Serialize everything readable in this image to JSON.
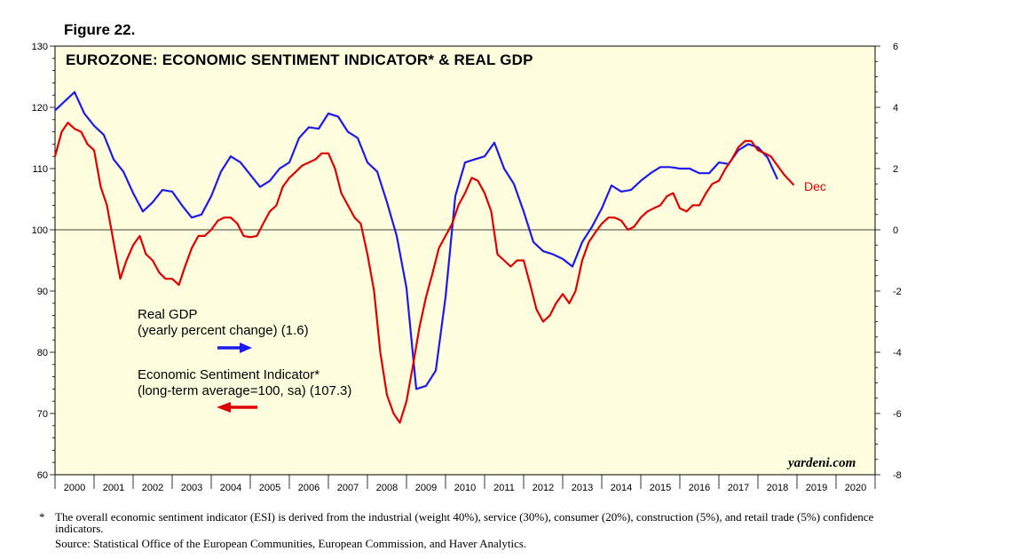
{
  "figure_label": "Figure 22.",
  "watermark": "yardeni.com",
  "footnote": {
    "marker": "*",
    "text": "The overall economic sentiment indicator (ESI) is derived from the industrial (weight 40%), service (30%), consumer (20%), construction (5%), and retail trade (5%) confidence indicators.",
    "source": "Source: Statistical Office of the European Communities, European Commission, and Haver Analytics."
  },
  "colors": {
    "esi": "#e00000",
    "gdp": "#1a1aee",
    "plot_bg": "#ffffe0"
  },
  "chart_data": {
    "type": "line",
    "title": "EUROZONE: ECONOMIC SENTIMENT INDICATOR* & REAL GDP",
    "x_range": [
      2000,
      2021
    ],
    "x_tick_labels": [
      "2000",
      "2001",
      "2002",
      "2003",
      "2004",
      "2005",
      "2006",
      "2007",
      "2008",
      "2009",
      "2010",
      "2011",
      "2012",
      "2013",
      "2014",
      "2015",
      "2016",
      "2017",
      "2018",
      "2019",
      "2020"
    ],
    "left_axis": {
      "min": 60,
      "max": 130,
      "ticks": [
        "60",
        "70",
        "80",
        "90",
        "100",
        "110",
        "120",
        "130"
      ]
    },
    "right_axis": {
      "min": -8,
      "max": 6,
      "ticks": [
        "-8",
        "-6",
        "-4",
        "-2",
        "0",
        "2",
        "4",
        "6"
      ]
    },
    "reference_line": 100,
    "annotation": "Dec",
    "series": [
      {
        "name": "Real GDP",
        "legend_line1": "Real GDP",
        "legend_line2": "(yearly percent change) (1.6)",
        "axis": "right",
        "x": [
          2000.0,
          2000.25,
          2000.5,
          2000.75,
          2001.0,
          2001.25,
          2001.5,
          2001.75,
          2002.0,
          2002.25,
          2002.5,
          2002.75,
          2003.0,
          2003.25,
          2003.5,
          2003.75,
          2004.0,
          2004.25,
          2004.5,
          2004.75,
          2005.0,
          2005.25,
          2005.5,
          2005.75,
          2006.0,
          2006.25,
          2006.5,
          2006.75,
          2007.0,
          2007.25,
          2007.5,
          2007.75,
          2008.0,
          2008.25,
          2008.5,
          2008.75,
          2009.0,
          2009.25,
          2009.5,
          2009.75,
          2010.0,
          2010.25,
          2010.5,
          2010.75,
          2011.0,
          2011.25,
          2011.5,
          2011.75,
          2012.0,
          2012.25,
          2012.5,
          2012.75,
          2013.0,
          2013.25,
          2013.5,
          2013.75,
          2014.0,
          2014.25,
          2014.5,
          2014.75,
          2015.0,
          2015.25,
          2015.5,
          2015.75,
          2016.0,
          2016.25,
          2016.5,
          2016.75,
          2017.0,
          2017.25,
          2017.5,
          2017.75,
          2018.0,
          2018.25,
          2018.5
        ],
        "values": [
          3.9,
          4.2,
          4.5,
          3.8,
          3.4,
          3.1,
          2.3,
          1.9,
          1.2,
          0.6,
          0.9,
          1.3,
          1.25,
          0.8,
          0.4,
          0.5,
          1.1,
          1.9,
          2.4,
          2.2,
          1.8,
          1.4,
          1.6,
          2.0,
          2.2,
          3.0,
          3.35,
          3.3,
          3.8,
          3.7,
          3.2,
          3.0,
          2.2,
          1.9,
          0.9,
          -0.2,
          -1.9,
          -5.2,
          -5.1,
          -4.6,
          -2.2,
          1.1,
          2.2,
          2.3,
          2.4,
          2.85,
          2.0,
          1.5,
          0.6,
          -0.4,
          -0.7,
          -0.8,
          -0.95,
          -1.2,
          -0.4,
          0.1,
          0.7,
          1.45,
          1.25,
          1.3,
          1.6,
          1.85,
          2.05,
          2.05,
          2.0,
          2.0,
          1.85,
          1.85,
          2.2,
          2.15,
          2.6,
          2.8,
          2.7,
          2.35,
          1.65
        ]
      },
      {
        "name": "Economic Sentiment Indicator*",
        "legend_line1": "Economic Sentiment Indicator*",
        "legend_line2": "(long-term average=100, sa) (107.3)",
        "axis": "left",
        "x": [
          2000.0,
          2000.17,
          2000.33,
          2000.5,
          2000.67,
          2000.83,
          2001.0,
          2001.17,
          2001.33,
          2001.5,
          2001.67,
          2001.83,
          2002.0,
          2002.17,
          2002.33,
          2002.5,
          2002.67,
          2002.83,
          2003.0,
          2003.17,
          2003.33,
          2003.5,
          2003.67,
          2003.83,
          2004.0,
          2004.17,
          2004.33,
          2004.5,
          2004.67,
          2004.83,
          2005.0,
          2005.17,
          2005.33,
          2005.5,
          2005.67,
          2005.83,
          2006.0,
          2006.17,
          2006.33,
          2006.5,
          2006.67,
          2006.83,
          2007.0,
          2007.17,
          2007.33,
          2007.5,
          2007.67,
          2007.83,
          2008.0,
          2008.17,
          2008.33,
          2008.5,
          2008.67,
          2008.83,
          2009.0,
          2009.17,
          2009.33,
          2009.5,
          2009.67,
          2009.83,
          2010.0,
          2010.17,
          2010.33,
          2010.5,
          2010.67,
          2010.83,
          2011.0,
          2011.17,
          2011.33,
          2011.5,
          2011.67,
          2011.83,
          2012.0,
          2012.17,
          2012.33,
          2012.5,
          2012.67,
          2012.83,
          2013.0,
          2013.17,
          2013.33,
          2013.5,
          2013.67,
          2013.83,
          2014.0,
          2014.17,
          2014.33,
          2014.5,
          2014.67,
          2014.83,
          2015.0,
          2015.17,
          2015.33,
          2015.5,
          2015.67,
          2015.83,
          2016.0,
          2016.17,
          2016.33,
          2016.5,
          2016.67,
          2016.83,
          2017.0,
          2017.17,
          2017.33,
          2017.5,
          2017.67,
          2017.83,
          2018.0,
          2018.17,
          2018.33,
          2018.5,
          2018.67,
          2018.92
        ],
        "values": [
          112,
          116,
          117.5,
          116.5,
          116,
          114,
          113,
          107,
          104,
          98,
          92,
          95,
          97.5,
          99,
          96,
          95,
          93,
          92,
          92,
          91,
          94,
          97,
          99,
          99,
          100,
          101.5,
          102,
          102,
          101,
          99,
          98.8,
          99,
          101,
          103,
          104,
          107,
          108.5,
          109.5,
          110.5,
          111,
          111.5,
          112.5,
          112.5,
          110,
          106,
          104,
          102,
          101,
          96,
          90,
          80,
          73,
          70,
          68.5,
          72,
          78,
          84,
          89,
          93,
          97,
          99,
          101,
          104,
          106,
          108.5,
          108,
          106,
          103,
          96,
          95,
          94,
          95,
          95,
          91,
          87,
          85,
          86,
          88,
          89.5,
          88,
          90,
          95,
          98,
          99.5,
          101,
          102,
          102,
          101.5,
          100,
          100.5,
          102,
          103,
          103.5,
          104,
          105.5,
          106,
          103.5,
          103,
          104,
          104,
          106,
          107.5,
          108,
          110,
          111.5,
          113.5,
          114.5,
          114.5,
          113,
          112.5,
          112,
          110.5,
          109,
          107.3
        ]
      }
    ]
  }
}
